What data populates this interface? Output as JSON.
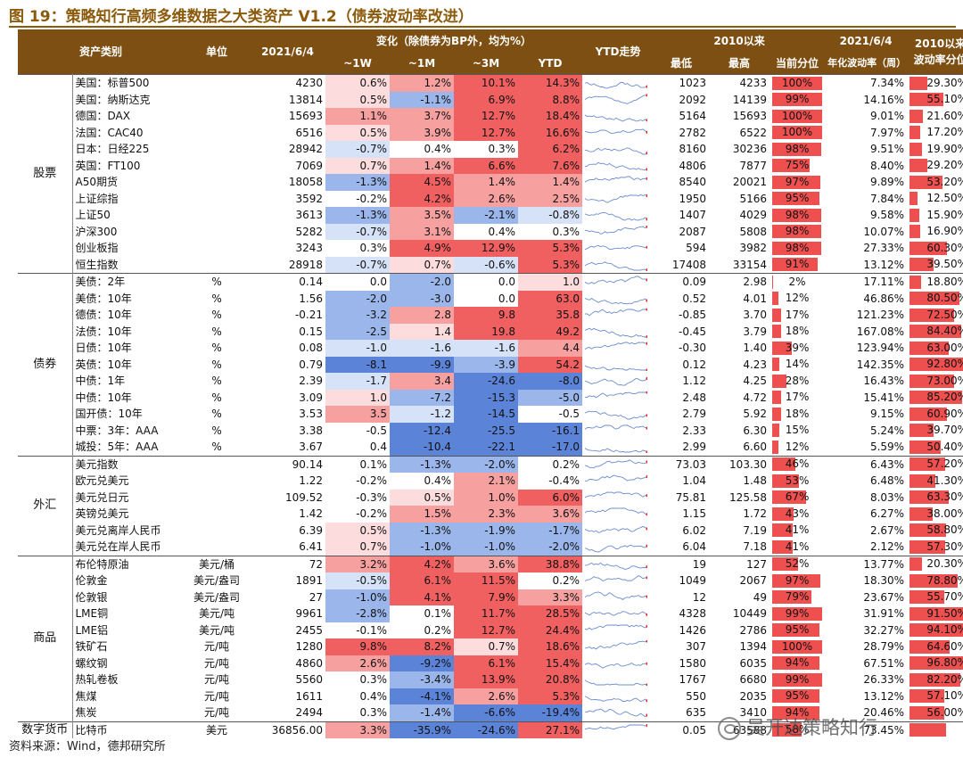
{
  "title": "图 19：策略知行高频多维数据之大类资产 V1.2（债券波动率改进）",
  "source": "资料来源：Wind，德邦研究所",
  "watermark": "吴开达策略知行",
  "header": {
    "asset": "资产类别",
    "unit": "单位",
    "date": "2021/6/4",
    "change_group": "变化（除债券为BP外，均为%）",
    "w1": "~1W",
    "m1": "~1M",
    "m3": "~3M",
    "ytd": "YTD",
    "ytd_trend": "YTD走势",
    "since_group": "2010以来",
    "low": "最低",
    "high": "最高",
    "pct": "当前分位",
    "vol_date": "2021/6/4",
    "vol": "年化波动率（周）",
    "vol_rank": "2010以来波动率分位"
  },
  "colors": {
    "pos_strong": "#f06060",
    "pos_mid": "#f7a0a0",
    "pos_light": "#fcdcdc",
    "neg_strong": "#5b84d8",
    "neg_mid": "#9ab6ea",
    "neg_light": "#d6e2f7",
    "bar": "#ee5050",
    "header": "#7d4f12"
  },
  "groups": [
    {
      "name": "股票",
      "rows": [
        {
          "name": "美国：标普500",
          "unit": "",
          "value": "4230",
          "w1": "0.6%",
          "m1": "1.2%",
          "m3": "10.1%",
          "ytd": "14.3%",
          "low": "1023",
          "high": "4233",
          "pct": "100%",
          "pct_v": 100,
          "vol": "7.34%",
          "vr": "29.30%",
          "vr_v": 29.3
        },
        {
          "name": "美国：纳斯达克",
          "unit": "",
          "value": "13814",
          "w1": "0.5%",
          "m1": "-1.1%",
          "m3": "6.9%",
          "ytd": "8.8%",
          "low": "2092",
          "high": "14139",
          "pct": "99%",
          "pct_v": 99,
          "vol": "14.16%",
          "vr": "55.10%",
          "vr_v": 55.1
        },
        {
          "name": "德国：DAX",
          "unit": "",
          "value": "15693",
          "w1": "1.1%",
          "m1": "3.7%",
          "m3": "12.7%",
          "ytd": "18.4%",
          "low": "5164",
          "high": "15693",
          "pct": "100%",
          "pct_v": 100,
          "vol": "9.01%",
          "vr": "21.60%",
          "vr_v": 21.6
        },
        {
          "name": "法国：CAC40",
          "unit": "",
          "value": "6516",
          "w1": "0.5%",
          "m1": "3.9%",
          "m3": "12.7%",
          "ytd": "16.6%",
          "low": "2782",
          "high": "6522",
          "pct": "100%",
          "pct_v": 100,
          "vol": "7.97%",
          "vr": "17.20%",
          "vr_v": 17.2
        },
        {
          "name": "日本：日经225",
          "unit": "",
          "value": "28942",
          "w1": "-0.7%",
          "m1": "0.4%",
          "m3": "0.3%",
          "ytd": "6.2%",
          "low": "8160",
          "high": "30236",
          "pct": "98%",
          "pct_v": 98,
          "vol": "9.51%",
          "vr": "19.90%",
          "vr_v": 19.9
        },
        {
          "name": "英国：FT100",
          "unit": "",
          "value": "7069",
          "w1": "0.7%",
          "m1": "1.4%",
          "m3": "6.6%",
          "ytd": "7.6%",
          "low": "4806",
          "high": "7877",
          "pct": "75%",
          "pct_v": 75,
          "vol": "8.40%",
          "vr": "29.20%",
          "vr_v": 29.2
        },
        {
          "name": "A50期货",
          "unit": "",
          "value": "18058",
          "w1": "-1.3%",
          "m1": "4.5%",
          "m3": "1.4%",
          "ytd": "1.4%",
          "low": "8540",
          "high": "20021",
          "pct": "97%",
          "pct_v": 97,
          "vol": "9.89%",
          "vr": "53.20%",
          "vr_v": 53.2
        },
        {
          "name": "上证综指",
          "unit": "",
          "value": "3592",
          "w1": "-0.2%",
          "m1": "4.2%",
          "m3": "2.6%",
          "ytd": "2.5%",
          "low": "1950",
          "high": "5166",
          "pct": "95%",
          "pct_v": 95,
          "vol": "7.84%",
          "vr": "12.50%",
          "vr_v": 12.5
        },
        {
          "name": "上证50",
          "unit": "",
          "value": "3613",
          "w1": "-1.3%",
          "m1": "3.5%",
          "m3": "-2.1%",
          "ytd": "-0.8%",
          "low": "1407",
          "high": "4029",
          "pct": "98%",
          "pct_v": 98,
          "vol": "9.58%",
          "vr": "15.90%",
          "vr_v": 15.9
        },
        {
          "name": "沪深300",
          "unit": "",
          "value": "5282",
          "w1": "-0.7%",
          "m1": "3.1%",
          "m3": "0.4%",
          "ytd": "0.3%",
          "low": "2087",
          "high": "5808",
          "pct": "98%",
          "pct_v": 98,
          "vol": "10.07%",
          "vr": "16.90%",
          "vr_v": 16.9
        },
        {
          "name": "创业板指",
          "unit": "",
          "value": "3243",
          "w1": "0.3%",
          "m1": "4.9%",
          "m3": "12.9%",
          "ytd": "5.3%",
          "low": "594",
          "high": "3982",
          "pct": "98%",
          "pct_v": 98,
          "vol": "27.33%",
          "vr": "60.30%",
          "vr_v": 60.3
        },
        {
          "name": "恒生指数",
          "unit": "",
          "value": "28918",
          "w1": "-0.7%",
          "m1": "0.7%",
          "m3": "-0.6%",
          "ytd": "5.3%",
          "low": "17408",
          "high": "33154",
          "pct": "91%",
          "pct_v": 91,
          "vol": "13.12%",
          "vr": "39.50%",
          "vr_v": 39.5
        }
      ]
    },
    {
      "name": "债券",
      "rows": [
        {
          "name": "美债：2年",
          "unit": "%",
          "value": "0.14",
          "w1": "0.0",
          "m1": "-2.0",
          "m3": "0.0",
          "ytd": "1.0",
          "low": "0.09",
          "high": "2.98",
          "pct": "2%",
          "pct_v": 2,
          "vol": "17.11%",
          "vr": "18.80%",
          "vr_v": 18.8
        },
        {
          "name": "美债：10年",
          "unit": "%",
          "value": "1.56",
          "w1": "-2.0",
          "m1": "-3.0",
          "m3": "0.0",
          "ytd": "63.0",
          "low": "0.52",
          "high": "4.01",
          "pct": "12%",
          "pct_v": 12,
          "vol": "46.86%",
          "vr": "80.50%",
          "vr_v": 80.5
        },
        {
          "name": "德债：10年",
          "unit": "%",
          "value": "-0.21",
          "w1": "-3.2",
          "m1": "2.8",
          "m3": "9.8",
          "ytd": "35.8",
          "low": "-0.85",
          "high": "3.70",
          "pct": "17%",
          "pct_v": 17,
          "vol": "121.23%",
          "vr": "72.50%",
          "vr_v": 72.5
        },
        {
          "name": "法债：10年",
          "unit": "%",
          "value": "0.15",
          "w1": "-2.5",
          "m1": "1.4",
          "m3": "19.8",
          "ytd": "49.2",
          "low": "-0.45",
          "high": "3.79",
          "pct": "18%",
          "pct_v": 18,
          "vol": "167.08%",
          "vr": "84.40%",
          "vr_v": 84.4
        },
        {
          "name": "日债：10年",
          "unit": "%",
          "value": "0.08",
          "w1": "-1.0",
          "m1": "-1.6",
          "m3": "-1.6",
          "ytd": "4.4",
          "low": "-0.30",
          "high": "1.40",
          "pct": "39%",
          "pct_v": 39,
          "vol": "123.94%",
          "vr": "63.00%",
          "vr_v": 63.0
        },
        {
          "name": "英债：10年",
          "unit": "%",
          "value": "0.79",
          "w1": "-8.1",
          "m1": "-9.9",
          "m3": "-3.9",
          "ytd": "54.2",
          "low": "0.12",
          "high": "4.23",
          "pct": "14%",
          "pct_v": 14,
          "vol": "142.35%",
          "vr": "92.80%",
          "vr_v": 92.8
        },
        {
          "name": "中债：1年",
          "unit": "%",
          "value": "2.39",
          "w1": "-1.7",
          "m1": "3.4",
          "m3": "-24.6",
          "ytd": "-8.0",
          "low": "1.12",
          "high": "4.25",
          "pct": "28%",
          "pct_v": 28,
          "vol": "16.43%",
          "vr": "73.00%",
          "vr_v": 73.0
        },
        {
          "name": "中债：10年",
          "unit": "%",
          "value": "3.09",
          "w1": "1.0",
          "m1": "-7.2",
          "m3": "-15.3",
          "ytd": "-5.0",
          "low": "2.48",
          "high": "4.72",
          "pct": "17%",
          "pct_v": 17,
          "vol": "15.41%",
          "vr": "85.20%",
          "vr_v": 85.2
        },
        {
          "name": "国开债：10年",
          "unit": "%",
          "value": "3.53",
          "w1": "3.5",
          "m1": "-1.2",
          "m3": "-14.5",
          "ytd": "-0.5",
          "low": "2.79",
          "high": "5.92",
          "pct": "18%",
          "pct_v": 18,
          "vol": "9.15%",
          "vr": "60.90%",
          "vr_v": 60.9
        },
        {
          "name": "中票：3年：AAA",
          "unit": "%",
          "value": "3.38",
          "w1": "-0.5",
          "m1": "-12.4",
          "m3": "-25.5",
          "ytd": "-16.1",
          "low": "2.33",
          "high": "6.30",
          "pct": "15%",
          "pct_v": 15,
          "vol": "5.24%",
          "vr": "39.70%",
          "vr_v": 39.7
        },
        {
          "name": "城投：5年：AAA",
          "unit": "%",
          "value": "3.67",
          "w1": "0.4",
          "m1": "-10.4",
          "m3": "-22.1",
          "ytd": "-17.0",
          "low": "2.99",
          "high": "6.60",
          "pct": "12%",
          "pct_v": 12,
          "vol": "5.59%",
          "vr": "50.40%",
          "vr_v": 50.4
        }
      ]
    },
    {
      "name": "外汇",
      "rows": [
        {
          "name": "美元指数",
          "unit": "",
          "value": "90.14",
          "w1": "0.1%",
          "m1": "-1.3%",
          "m3": "-2.0%",
          "ytd": "0.2%",
          "low": "73.03",
          "high": "103.30",
          "pct": "46%",
          "pct_v": 46,
          "vol": "6.43%",
          "vr": "57.20%",
          "vr_v": 57.2
        },
        {
          "name": "欧元兑美元",
          "unit": "",
          "value": "1.22",
          "w1": "-0.2%",
          "m1": "0.4%",
          "m3": "2.1%",
          "ytd": "-0.4%",
          "low": "1.04",
          "high": "1.48",
          "pct": "53%",
          "pct_v": 53,
          "vol": "6.48%",
          "vr": "41.30%",
          "vr_v": 41.3
        },
        {
          "name": "美元兑日元",
          "unit": "",
          "value": "109.52",
          "w1": "-0.3%",
          "m1": "0.5%",
          "m3": "1.0%",
          "ytd": "6.0%",
          "low": "75.81",
          "high": "125.58",
          "pct": "67%",
          "pct_v": 67,
          "vol": "8.03%",
          "vr": "63.30%",
          "vr_v": 63.3
        },
        {
          "name": "英镑兑美元",
          "unit": "",
          "value": "1.42",
          "w1": "-0.2%",
          "m1": "1.5%",
          "m3": "2.3%",
          "ytd": "3.6%",
          "low": "1.15",
          "high": "1.72",
          "pct": "43%",
          "pct_v": 43,
          "vol": "6.27%",
          "vr": "38.00%",
          "vr_v": 38.0
        },
        {
          "name": "美元兑离岸人民币",
          "unit": "",
          "value": "6.39",
          "w1": "0.5%",
          "m1": "-1.3%",
          "m3": "-1.9%",
          "ytd": "-1.7%",
          "low": "6.02",
          "high": "7.19",
          "pct": "41%",
          "pct_v": 41,
          "vol": "2.67%",
          "vr": "58.80%",
          "vr_v": 58.8
        },
        {
          "name": "美元兑在岸人民币",
          "unit": "",
          "value": "6.41",
          "w1": "0.7%",
          "m1": "-1.0%",
          "m3": "-1.0%",
          "ytd": "-2.0%",
          "low": "6.04",
          "high": "7.18",
          "pct": "41%",
          "pct_v": 41,
          "vol": "2.12%",
          "vr": "57.30%",
          "vr_v": 57.3
        }
      ]
    },
    {
      "name": "商品",
      "rows": [
        {
          "name": "布伦特原油",
          "unit": "美元/桶",
          "value": "72",
          "w1": "3.2%",
          "m1": "4.2%",
          "m3": "3.6%",
          "ytd": "38.8%",
          "low": "19",
          "high": "127",
          "pct": "52%",
          "pct_v": 52,
          "vol": "13.77%",
          "vr": "20.30%",
          "vr_v": 20.3
        },
        {
          "name": "伦敦金",
          "unit": "美元/盎司",
          "value": "1891",
          "w1": "-0.5%",
          "m1": "6.1%",
          "m3": "11.5%",
          "ytd": "0.2%",
          "low": "1049",
          "high": "2067",
          "pct": "97%",
          "pct_v": 97,
          "vol": "18.30%",
          "vr": "78.80%",
          "vr_v": 78.8
        },
        {
          "name": "伦敦银",
          "unit": "美元/盎司",
          "value": "27",
          "w1": "-1.0%",
          "m1": "4.1%",
          "m3": "7.9%",
          "ytd": "3.3%",
          "low": "12",
          "high": "49",
          "pct": "79%",
          "pct_v": 79,
          "vol": "23.67%",
          "vr": "55.70%",
          "vr_v": 55.7
        },
        {
          "name": "LME铜",
          "unit": "美元/吨",
          "value": "9961",
          "w1": "-2.8%",
          "m1": "0.1%",
          "m3": "11.7%",
          "ytd": "28.5%",
          "low": "4328",
          "high": "10449",
          "pct": "99%",
          "pct_v": 99,
          "vol": "31.91%",
          "vr": "91.50%",
          "vr_v": 91.5
        },
        {
          "name": "LME铝",
          "unit": "美元/吨",
          "value": "2455",
          "w1": "-0.1%",
          "m1": "0.2%",
          "m3": "12.7%",
          "ytd": "24.4%",
          "low": "1426",
          "high": "2786",
          "pct": "95%",
          "pct_v": 95,
          "vol": "32.27%",
          "vr": "94.10%",
          "vr_v": 94.1
        },
        {
          "name": "铁矿石",
          "unit": "元/吨",
          "value": "1280",
          "w1": "9.8%",
          "m1": "8.2%",
          "m3": "0.7%",
          "ytd": "18.6%",
          "low": "307",
          "high": "1394",
          "pct": "100%",
          "pct_v": 100,
          "vol": "28.79%",
          "vr": "64.60%",
          "vr_v": 64.6
        },
        {
          "name": "螺纹钢",
          "unit": "元/吨",
          "value": "4860",
          "w1": "2.6%",
          "m1": "-9.2%",
          "m3": "6.1%",
          "ytd": "15.4%",
          "low": "1580",
          "high": "6035",
          "pct": "94%",
          "pct_v": 94,
          "vol": "67.51%",
          "vr": "96.80%",
          "vr_v": 96.8
        },
        {
          "name": "热轧卷板",
          "unit": "元/吨",
          "value": "5560",
          "w1": "0.3%",
          "m1": "-3.4%",
          "m3": "13.9%",
          "ytd": "20.8%",
          "low": "1767",
          "high": "6680",
          "pct": "99%",
          "pct_v": 99,
          "vol": "26.33%",
          "vr": "82.20%",
          "vr_v": 82.2
        },
        {
          "name": "焦煤",
          "unit": "元/吨",
          "value": "1611",
          "w1": "0.4%",
          "m1": "-4.1%",
          "m3": "2.6%",
          "ytd": "5.3%",
          "low": "550",
          "high": "2035",
          "pct": "95%",
          "pct_v": 95,
          "vol": "13.12%",
          "vr": "57.10%",
          "vr_v": 57.1
        },
        {
          "name": "焦炭",
          "unit": "元/吨",
          "value": "2494",
          "w1": "0.3%",
          "m1": "-1.4%",
          "m3": "-6.6%",
          "ytd": "-19.4%",
          "low": "635",
          "high": "3410",
          "pct": "94%",
          "pct_v": 94,
          "vol": "20.46%",
          "vr": "56.00%",
          "vr_v": 56.0
        }
      ]
    },
    {
      "name": "数字货币",
      "rows": [
        {
          "name": "比特币",
          "unit": "美元",
          "value": "36856.00",
          "w1": "3.3%",
          "m1": "-35.9%",
          "m3": "-24.6%",
          "ytd": "27.1%",
          "low": "0.05",
          "high": "63588",
          "pct": "58%",
          "pct_v": 58,
          "vol": "73.45%",
          "vr": "",
          "vr_v": 60
        }
      ]
    }
  ]
}
